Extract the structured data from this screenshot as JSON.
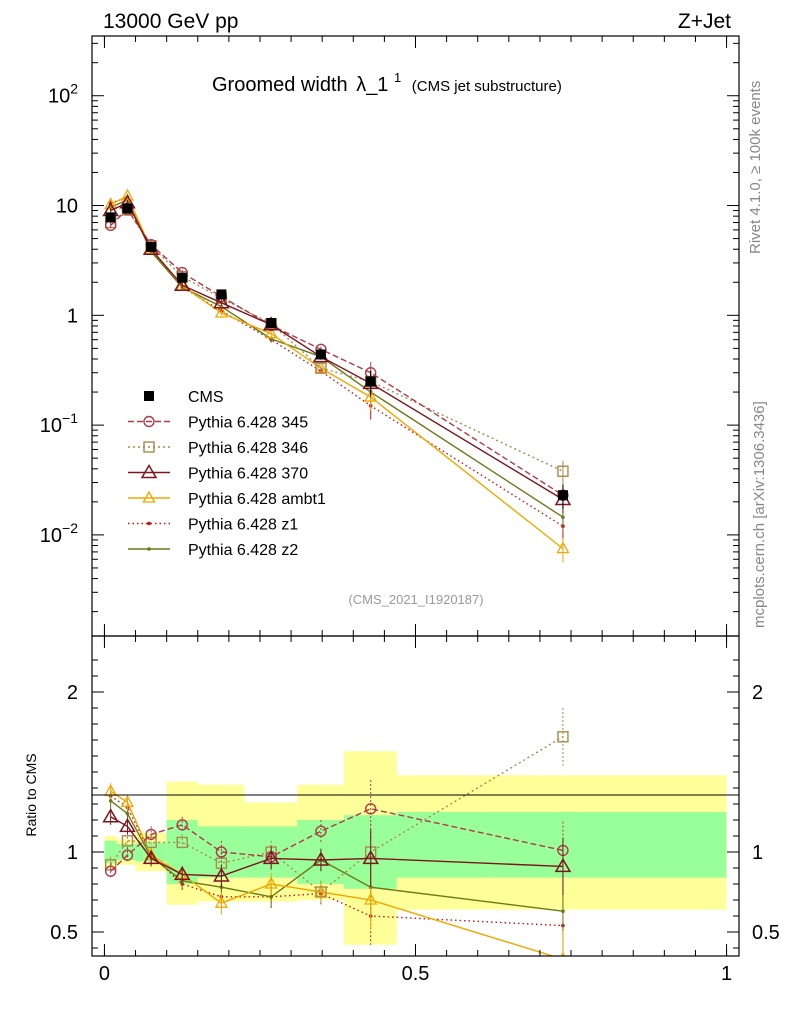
{
  "header": {
    "left": "13000 GeV pp",
    "right": "Z+Jet",
    "title_main": "Groomed width",
    "title_symbol": "λ_1",
    "title_sup": "1",
    "title_sub": "(CMS jet substructure)",
    "analysis_id": "(CMS_2021_I1920187)",
    "side_rivet": "Rivet 4.1.0, ≥ 100k events",
    "side_mcplots": "mcplots.cern.ch [arXiv:1306.3436]"
  },
  "colors": {
    "cms": "#000000",
    "p345": "#b03a48",
    "p346": "#a88a4a",
    "p370": "#7d1420",
    "ambt1": "#f0a800",
    "z1": "#d01010",
    "z2": "#6a7a18",
    "band_inner": "#99ff99",
    "band_outer": "#ffff99"
  },
  "chart_data": [
    {
      "type": "line",
      "panel": "main",
      "yscale": "log",
      "xlim": [
        -0.02,
        1.02
      ],
      "ylim": [
        0.0012,
        350
      ],
      "yticks": [
        {
          "value": 100,
          "label": "10",
          "sup": "2"
        },
        {
          "value": 10,
          "label": "10",
          "sup": ""
        },
        {
          "value": 1,
          "label": "1",
          "sup": ""
        },
        {
          "value": 0.1,
          "label": "10",
          "sup": "−1"
        },
        {
          "value": 0.01,
          "label": "10",
          "sup": "−2"
        }
      ],
      "x": [
        0.01,
        0.037,
        0.075,
        0.125,
        0.188,
        0.268,
        0.348,
        0.428,
        0.737
      ],
      "series": [
        {
          "key": "cms",
          "name": "CMS",
          "values": [
            7.8,
            9.4,
            4.2,
            2.2,
            1.55,
            0.85,
            0.44,
            0.25,
            0.023
          ]
        },
        {
          "key": "p345",
          "name": "Pythia 6.428 345",
          "values": [
            6.6,
            9.2,
            4.4,
            2.45,
            1.48,
            0.81,
            0.49,
            0.3,
            0.023
          ]
        },
        {
          "key": "p346",
          "name": "Pythia 6.428 346",
          "values": [
            7.0,
            9.1,
            4.3,
            2.25,
            1.43,
            0.84,
            0.33,
            0.25,
            0.038
          ]
        },
        {
          "key": "p370",
          "name": "Pythia 6.428 370",
          "values": [
            9.0,
            10.6,
            4.0,
            1.88,
            1.3,
            0.82,
            0.42,
            0.24,
            0.021
          ]
        },
        {
          "key": "ambt1",
          "name": "Pythia 6.428 ambt1",
          "values": [
            10.2,
            12.2,
            4.0,
            1.86,
            1.05,
            0.68,
            0.33,
            0.18,
            0.0075
          ]
        },
        {
          "key": "z1",
          "name": "Pythia 6.428 z1",
          "values": [
            10.5,
            11.9,
            3.9,
            1.8,
            1.1,
            0.6,
            0.31,
            0.15,
            0.012
          ]
        },
        {
          "key": "z2",
          "name": "Pythia 6.428 z2",
          "values": [
            9.7,
            11.2,
            3.8,
            1.8,
            1.2,
            0.61,
            0.42,
            0.2,
            0.0145
          ]
        }
      ]
    },
    {
      "type": "line",
      "panel": "ratio",
      "ylabel": "Ratio to CMS",
      "xlim": [
        -0.02,
        1.02
      ],
      "ylim": [
        0.35,
        2.35
      ],
      "yticks": [
        {
          "value": 2,
          "label": "2"
        },
        {
          "value": 1,
          "label": "1"
        },
        {
          "value": 0.5,
          "label": "0.5"
        }
      ],
      "xticks": [
        {
          "value": 0,
          "label": "0"
        },
        {
          "value": 0.5,
          "label": "0.5"
        },
        {
          "value": 1,
          "label": "1"
        }
      ],
      "bands": [
        {
          "x0": 0.0,
          "x1": 0.02,
          "inner": [
            0.93,
            1.07
          ],
          "outer": [
            0.9,
            1.1
          ]
        },
        {
          "x0": 0.02,
          "x1": 0.05,
          "inner": [
            0.95,
            1.05
          ],
          "outer": [
            0.92,
            1.08
          ]
        },
        {
          "x0": 0.05,
          "x1": 0.1,
          "inner": [
            0.94,
            1.06
          ],
          "outer": [
            0.88,
            1.12
          ]
        },
        {
          "x0": 0.1,
          "x1": 0.15,
          "inner": [
            0.8,
            1.2
          ],
          "outer": [
            0.67,
            1.44
          ]
        },
        {
          "x0": 0.15,
          "x1": 0.225,
          "inner": [
            0.84,
            1.16
          ],
          "outer": [
            0.69,
            1.42
          ]
        },
        {
          "x0": 0.225,
          "x1": 0.31,
          "inner": [
            0.84,
            1.16
          ],
          "outer": [
            0.69,
            1.31
          ]
        },
        {
          "x0": 0.31,
          "x1": 0.385,
          "inner": [
            0.8,
            1.2
          ],
          "outer": [
            0.7,
            1.42
          ]
        },
        {
          "x0": 0.385,
          "x1": 0.47,
          "inner": [
            0.77,
            1.23
          ],
          "outer": [
            0.42,
            1.63
          ]
        },
        {
          "x0": 0.47,
          "x1": 1.0,
          "inner": [
            0.84,
            1.25
          ],
          "outer": [
            0.64,
            1.48
          ]
        }
      ],
      "x": [
        0.01,
        0.037,
        0.075,
        0.125,
        0.188,
        0.268,
        0.348,
        0.428,
        0.737
      ],
      "series": [
        {
          "key": "p345",
          "values": [
            0.88,
            0.98,
            1.11,
            1.17,
            1.0,
            0.97,
            1.13,
            1.27,
            1.01
          ]
        },
        {
          "key": "p346",
          "values": [
            0.92,
            1.07,
            1.06,
            1.06,
            0.93,
            1.0,
            0.75,
            1.0,
            1.72
          ]
        },
        {
          "key": "p370",
          "values": [
            1.22,
            1.16,
            0.96,
            0.86,
            0.85,
            0.96,
            0.95,
            0.96,
            0.91
          ]
        },
        {
          "key": "ambt1",
          "values": [
            1.38,
            1.31,
            0.98,
            0.86,
            0.68,
            0.8,
            0.75,
            0.7,
            0.33
          ]
        },
        {
          "key": "z1",
          "values": [
            1.35,
            1.28,
            0.98,
            0.8,
            0.72,
            0.72,
            0.74,
            0.6,
            0.54
          ]
        },
        {
          "key": "z2",
          "values": [
            1.32,
            1.24,
            0.97,
            0.82,
            0.78,
            0.72,
            0.95,
            0.78,
            0.63
          ]
        }
      ]
    }
  ]
}
